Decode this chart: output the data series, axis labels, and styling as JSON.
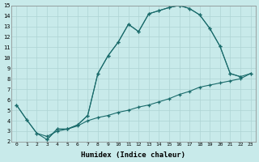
{
  "bg_color": "#c8eaea",
  "grid_color": "#aed4d4",
  "line_color": "#1a6b6b",
  "xlabel": "Humidex (Indice chaleur)",
  "xlim": [
    -0.5,
    23.5
  ],
  "ylim": [
    2,
    15
  ],
  "xticks": [
    0,
    1,
    2,
    3,
    4,
    5,
    6,
    7,
    8,
    9,
    10,
    11,
    12,
    13,
    14,
    15,
    16,
    17,
    18,
    19,
    20,
    21,
    22,
    23
  ],
  "yticks": [
    2,
    3,
    4,
    5,
    6,
    7,
    8,
    9,
    10,
    11,
    12,
    13,
    14,
    15
  ],
  "curve_outer_x": [
    0,
    1,
    2,
    3,
    4,
    5,
    6,
    7,
    8,
    9,
    10,
    11,
    12,
    13,
    14,
    15,
    16,
    17,
    18,
    19,
    20,
    21,
    22,
    23
  ],
  "curve_outer_y": [
    5.5,
    4.1,
    2.8,
    2.2,
    3.2,
    3.2,
    3.6,
    4.5,
    8.5,
    10.2,
    11.5,
    13.2,
    12.5,
    14.2,
    14.5,
    14.8,
    15.0,
    14.7,
    14.1,
    12.8,
    11.1,
    8.5,
    8.2,
    8.5
  ],
  "curve_inner_x": [
    3,
    4,
    5,
    6,
    7,
    8,
    9,
    10,
    11,
    12,
    13,
    14,
    15,
    16,
    17,
    18,
    19,
    20,
    21,
    22
  ],
  "curve_inner_y": [
    2.2,
    3.2,
    3.2,
    3.6,
    4.5,
    8.5,
    10.2,
    11.5,
    13.2,
    12.5,
    14.2,
    14.5,
    14.8,
    15.0,
    14.7,
    14.1,
    12.8,
    11.1,
    8.5,
    8.2
  ],
  "curve_lower_x": [
    0,
    1,
    2,
    3,
    4,
    5,
    6,
    7,
    8,
    9,
    10,
    11,
    12,
    13,
    14,
    15,
    16,
    17,
    18,
    19,
    20,
    21,
    22,
    23
  ],
  "curve_lower_y": [
    5.5,
    4.1,
    2.8,
    2.5,
    3.0,
    3.2,
    3.5,
    4.0,
    4.3,
    4.5,
    4.8,
    5.0,
    5.3,
    5.5,
    5.8,
    6.1,
    6.5,
    6.8,
    7.2,
    7.4,
    7.6,
    7.8,
    8.0,
    8.5
  ]
}
